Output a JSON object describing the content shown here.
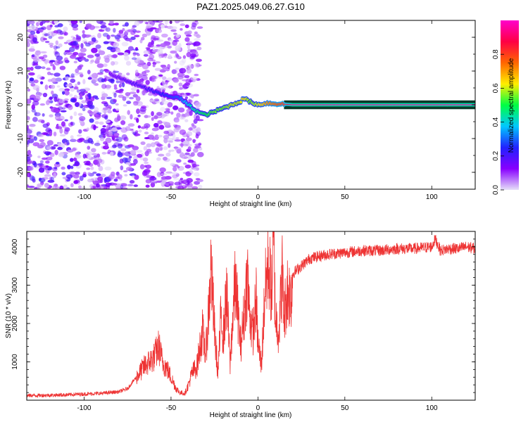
{
  "title": "PAZ1.2025.049.06.27.G10",
  "colors": {
    "snr_line": "#ee3333",
    "stripe_band": "#0a3a2a",
    "colorbar_stops": [
      "#e6e0f8",
      "#8800ff",
      "#2222ff",
      "#00c8ff",
      "#00ff44",
      "#ffee00",
      "#ff6600",
      "#ff0044",
      "#ff00cc"
    ]
  },
  "chart_data": [
    {
      "type": "heatmap",
      "name": "spectrogram",
      "xlabel": "Height of straight line (km)",
      "ylabel": "Frequency (Hz)",
      "xlim": [
        -133,
        125
      ],
      "ylim": [
        -25,
        25
      ],
      "xticks": [
        -100,
        -50,
        0,
        50,
        100
      ],
      "yticks": [
        20,
        10,
        0,
        -10,
        -20
      ],
      "colorbar": {
        "label": "Normalized spectral amplitude",
        "ticks": [
          0.0,
          0.2,
          0.4,
          0.6,
          0.8
        ],
        "range": [
          0,
          1
        ]
      },
      "ridge": {
        "description_points_height_km": [
          -85,
          -75,
          -65,
          -55,
          -45,
          -40,
          -35,
          -30,
          -25,
          -20,
          -15,
          -10,
          -8,
          -5,
          0,
          5,
          10,
          15,
          20,
          50,
          100,
          125
        ],
        "frequency_hz": [
          9,
          7,
          5,
          3,
          2,
          0,
          -2,
          -3,
          -2,
          -1,
          0,
          1,
          2,
          1,
          0,
          0.5,
          0.3,
          0.2,
          0,
          0,
          0,
          0
        ],
        "amplitude": [
          0.15,
          0.18,
          0.2,
          0.25,
          0.3,
          0.4,
          0.45,
          0.5,
          0.55,
          0.55,
          0.6,
          0.6,
          0.65,
          0.55,
          0.6,
          0.7,
          0.75,
          0.8,
          0.95,
          0.95,
          0.95,
          0.95
        ]
      },
      "grid": false
    },
    {
      "type": "line",
      "name": "snr",
      "xlabel": "Height of straight line (km)",
      "ylabel": "SNR (10 * v/v)",
      "xlim": [
        -133,
        125
      ],
      "ylim": [
        0,
        4400
      ],
      "xticks": [
        -100,
        -50,
        0,
        50,
        100
      ],
      "yticks": [
        1000,
        2000,
        3000,
        4000
      ],
      "series": [
        {
          "x": [
            -133,
            -120,
            -110,
            -100,
            -90,
            -80,
            -75,
            -70,
            -65,
            -60,
            -57,
            -55,
            -52,
            -50,
            -47,
            -45,
            -42,
            -40,
            -38,
            -35,
            -32,
            -30,
            -28,
            -27,
            -25,
            -23,
            -21,
            -20,
            -18,
            -16,
            -15,
            -13,
            -11,
            -10,
            -8,
            -6,
            -5,
            -3,
            -1,
            0,
            2,
            4,
            6,
            8,
            9,
            10,
            12,
            14,
            15,
            17,
            19,
            20,
            25,
            30,
            40,
            50,
            60,
            70,
            80,
            90,
            100,
            102,
            105,
            110,
            115,
            120,
            125
          ],
          "y": [
            120,
            130,
            140,
            160,
            180,
            220,
            300,
            600,
            900,
            1100,
            1400,
            1000,
            800,
            600,
            300,
            200,
            180,
            400,
            700,
            900,
            1800,
            1200,
            2600,
            3500,
            1800,
            700,
            2400,
            1600,
            2800,
            900,
            1800,
            3100,
            2000,
            1400,
            2200,
            3300,
            2400,
            1700,
            2600,
            1500,
            900,
            2800,
            3600,
            2800,
            4300,
            2200,
            1800,
            3300,
            2200,
            2900,
            2700,
            3300,
            3500,
            3700,
            3800,
            3850,
            3900,
            3900,
            3950,
            3950,
            4000,
            4200,
            3900,
            3950,
            3950,
            4000,
            3950
          ]
        }
      ],
      "grid": false
    }
  ]
}
